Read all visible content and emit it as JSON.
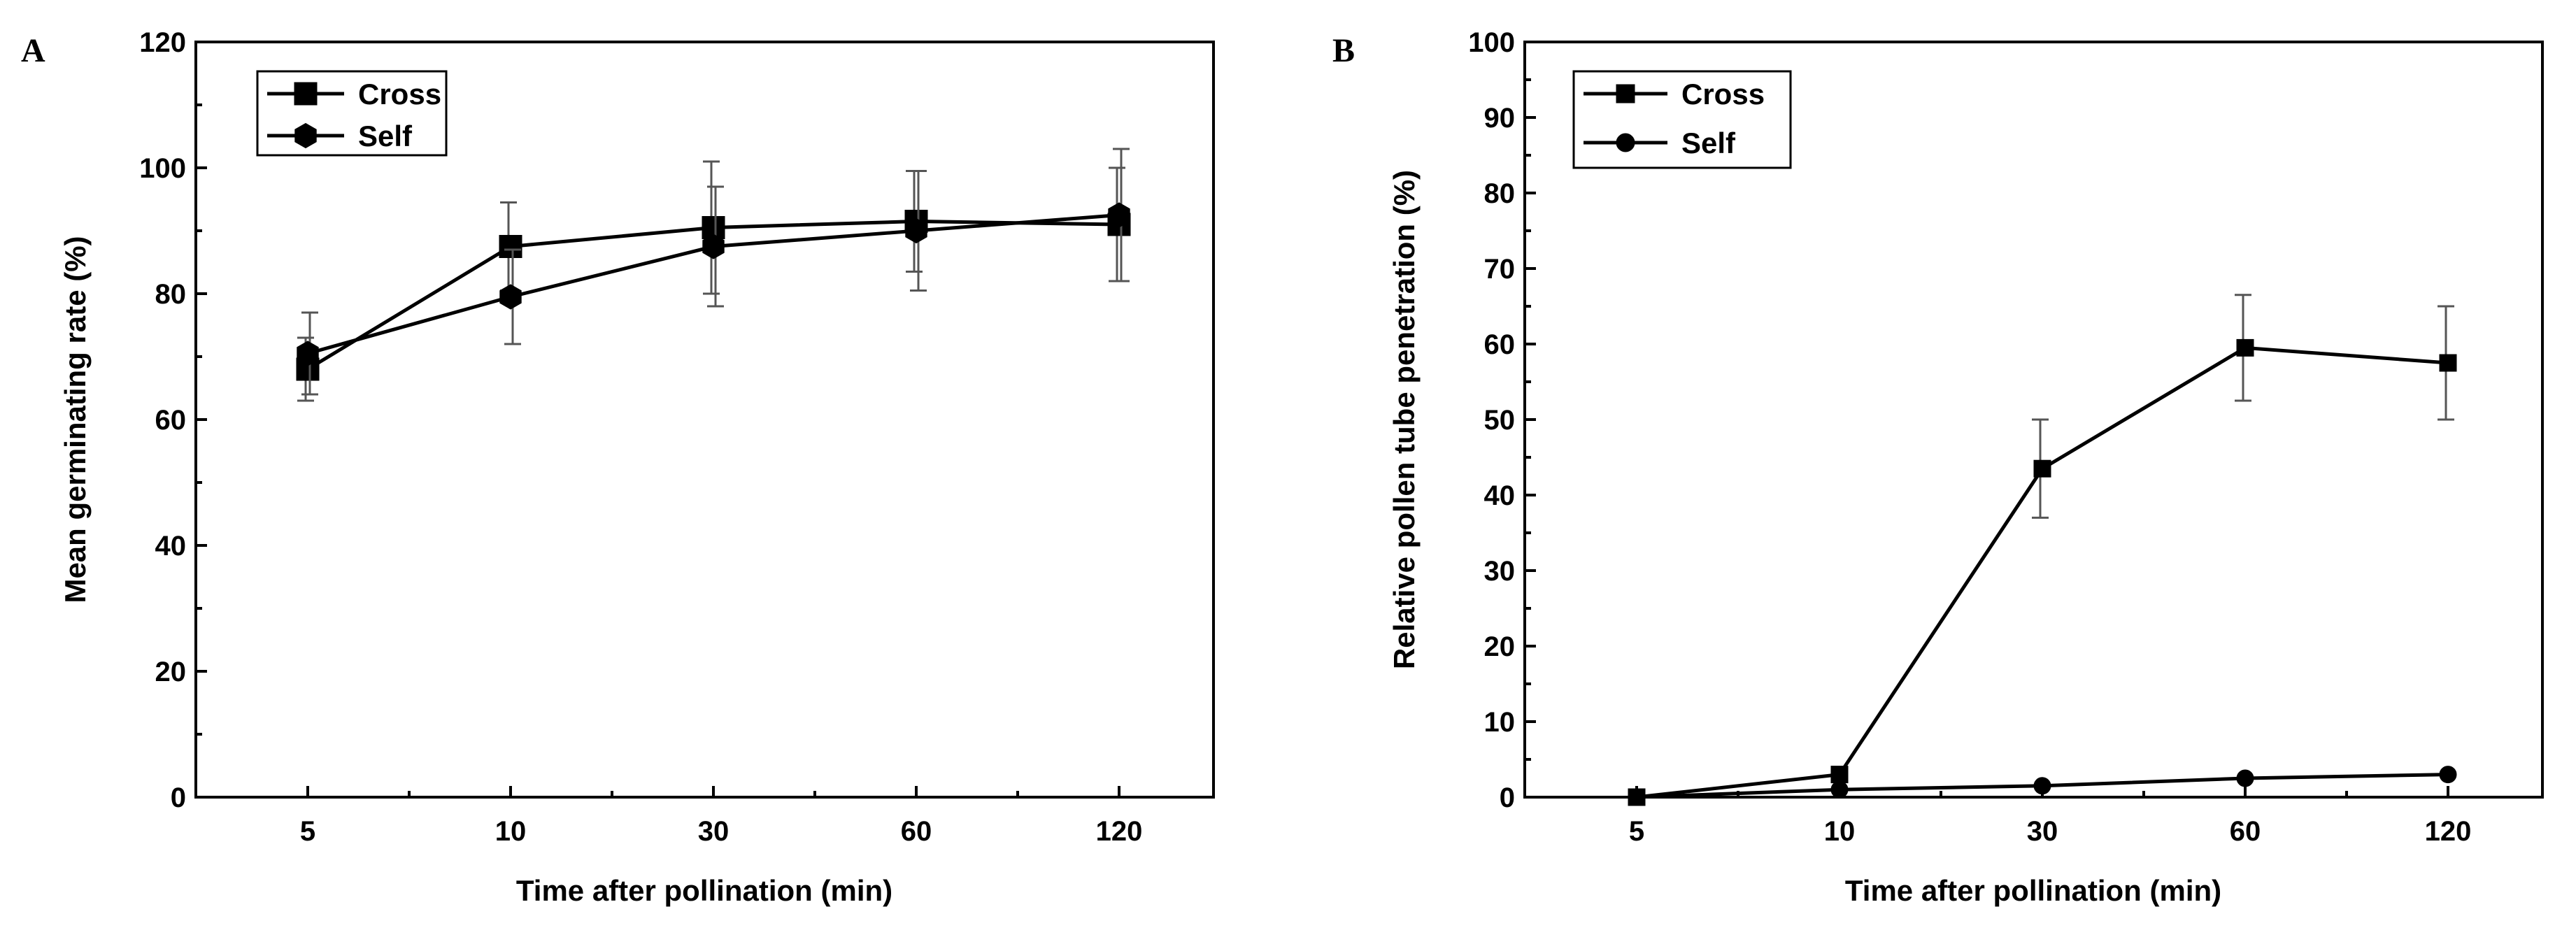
{
  "chart_data": [
    {
      "panel": "A",
      "type": "line",
      "categories": [
        "5",
        "10",
        "30",
        "60",
        "120"
      ],
      "xlabel": "Time after pollination (min)",
      "ylabel": "Mean germinating rate (%)",
      "ylim": [
        0,
        120
      ],
      "yticks": [
        0,
        20,
        40,
        60,
        80,
        100,
        120
      ],
      "legend": "top-left",
      "series": [
        {
          "name": "Cross",
          "marker": "square",
          "values": [
            68,
            87.5,
            90.5,
            91.5,
            91
          ],
          "err": [
            5,
            7,
            10.5,
            8,
            9
          ]
        },
        {
          "name": "Self",
          "marker": "hexagon",
          "values": [
            70.5,
            79.5,
            87.5,
            90,
            92.5
          ],
          "err": [
            6.5,
            7.5,
            9.5,
            9.5,
            10.5
          ]
        }
      ]
    },
    {
      "panel": "B",
      "type": "line",
      "categories": [
        "5",
        "10",
        "30",
        "60",
        "120"
      ],
      "xlabel": "Time after pollination (min)",
      "ylabel": "Relative pollen tube penetration (%)",
      "ylim": [
        0,
        100
      ],
      "yticks": [
        0,
        10,
        20,
        30,
        40,
        50,
        60,
        70,
        80,
        90,
        100
      ],
      "legend": "top-left",
      "series": [
        {
          "name": "Cross",
          "marker": "square",
          "values": [
            0,
            3,
            43.5,
            59.5,
            57.5
          ],
          "err": [
            0,
            0,
            6.5,
            7,
            7.5
          ]
        },
        {
          "name": "Self",
          "marker": "circle",
          "values": [
            0,
            1,
            1.5,
            2.5,
            3
          ],
          "err": [
            0,
            0,
            0,
            0,
            0
          ]
        }
      ]
    }
  ]
}
